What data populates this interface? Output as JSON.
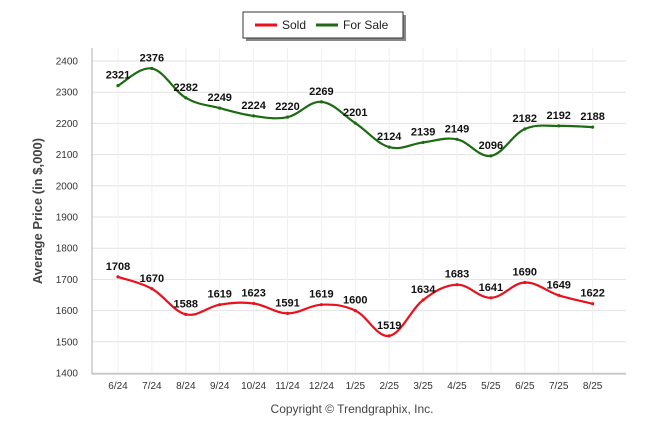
{
  "chart_data": {
    "type": "line",
    "categories": [
      "6/24",
      "7/24",
      "8/24",
      "9/24",
      "10/24",
      "11/24",
      "12/24",
      "1/25",
      "2/25",
      "3/25",
      "4/25",
      "5/25",
      "6/25",
      "7/25",
      "8/25"
    ],
    "series": [
      {
        "name": "Sold",
        "color": "#e8121c",
        "values": [
          1708,
          1670,
          1588,
          1619,
          1623,
          1591,
          1619,
          1600,
          1519,
          1634,
          1683,
          1641,
          1690,
          1649,
          1622
        ]
      },
      {
        "name": "For Sale",
        "color": "#1b6b12",
        "values": [
          2321,
          2376,
          2282,
          2249,
          2224,
          2220,
          2269,
          2201,
          2124,
          2139,
          2149,
          2096,
          2182,
          2192,
          2188
        ]
      }
    ],
    "ylabel": "Average Price (in $,000)",
    "xlabel": "",
    "ylim": [
      1400,
      2400
    ],
    "yticks": [
      1400,
      1500,
      1600,
      1700,
      1800,
      1900,
      2000,
      2100,
      2200,
      2300,
      2400
    ],
    "grid": true,
    "legend": "top-center"
  },
  "footer": {
    "copyright": "Copyright © Trendgraphix, Inc."
  }
}
